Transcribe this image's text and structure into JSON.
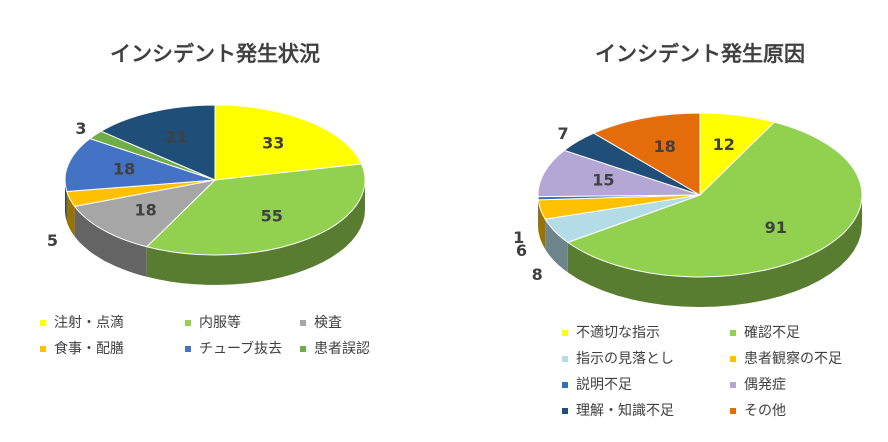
{
  "chart_data": [
    {
      "type": "pie3d",
      "title": "インシデント発生状況",
      "categories": [
        "注射・点滴",
        "内服等",
        "検査",
        "食事・配膳",
        "チューブ抜去",
        "患者誤認",
        null
      ],
      "values": [
        33,
        55,
        18,
        5,
        18,
        3,
        21
      ],
      "colors": [
        "#ffff00",
        "#92d050",
        "#a6a6a6",
        "#ffc000",
        "#4472c4",
        "#70ad47",
        "#1f4e79"
      ]
    },
    {
      "type": "pie3d",
      "title": "インシデント発生原因",
      "categories": [
        "不適切な指示",
        "確認不足",
        "指示の見落とし",
        "患者観察の不足",
        "説明不足",
        "偶発症",
        "理解・知識不足",
        "その他"
      ],
      "values": [
        12,
        91,
        8,
        6,
        1,
        15,
        7,
        18
      ],
      "colors": [
        "#ffff00",
        "#92d050",
        "#b4dce6",
        "#ffc000",
        "#2e75b6",
        "#b4a7d6",
        "#1f4e79",
        "#e46c0a"
      ]
    }
  ]
}
